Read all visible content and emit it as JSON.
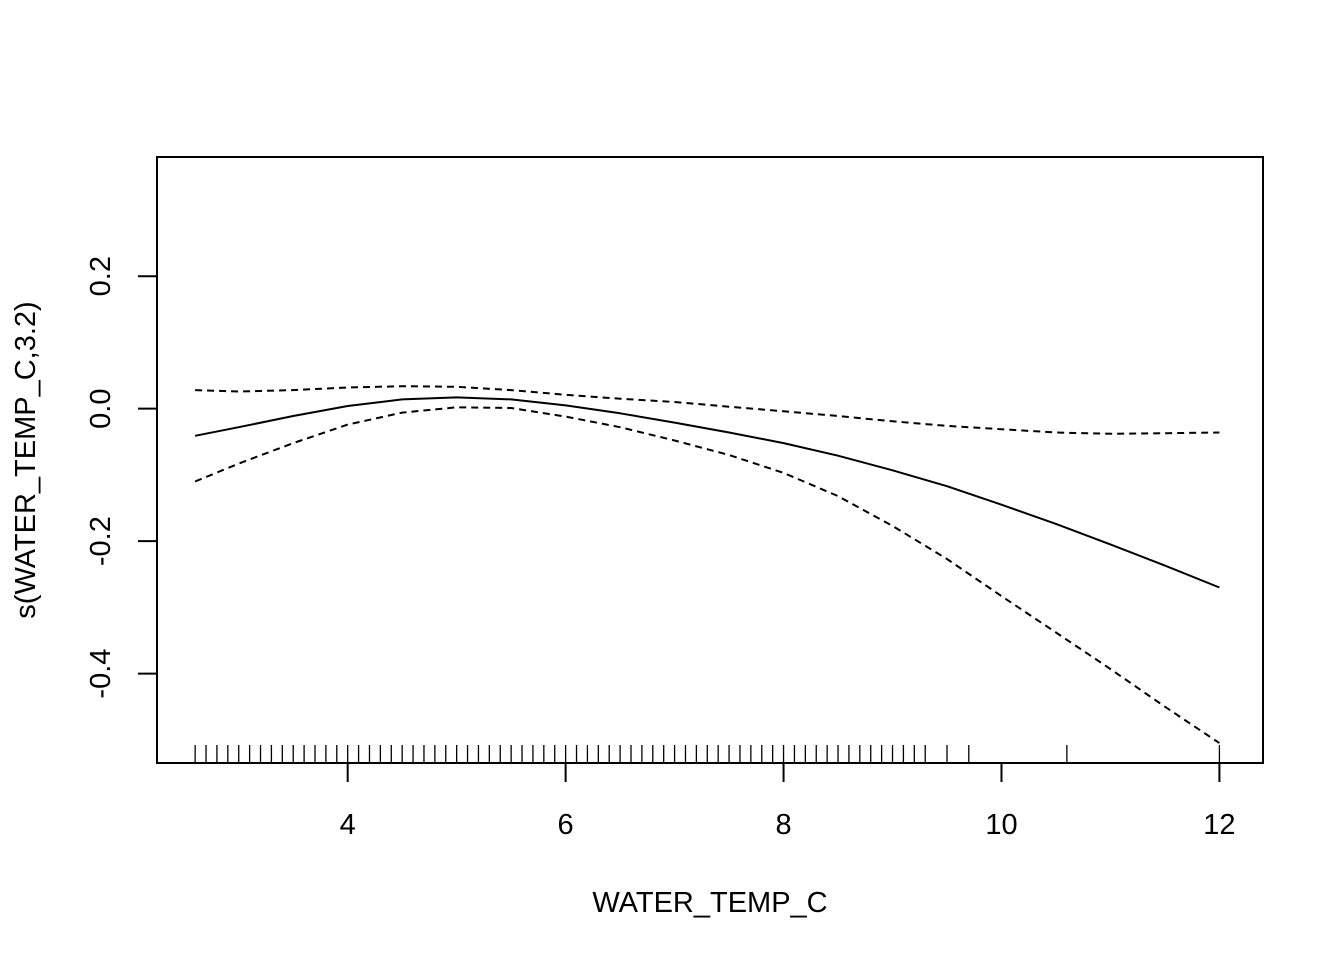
{
  "chart_data": {
    "type": "line",
    "title": "",
    "xlabel": "WATER_TEMP_C",
    "ylabel": "s(WATER_TEMP_C,3.2)",
    "xlim": [
      2.25,
      12.4
    ],
    "ylim": [
      -0.535,
      0.38
    ],
    "xticks": [
      {
        "value": 4,
        "label": "4"
      },
      {
        "value": 6,
        "label": "6"
      },
      {
        "value": 8,
        "label": "8"
      },
      {
        "value": 10,
        "label": "10"
      },
      {
        "value": 12,
        "label": "12"
      }
    ],
    "yticks": [
      {
        "value": -0.4,
        "label": "-0.4"
      },
      {
        "value": -0.2,
        "label": "-0.2"
      },
      {
        "value": 0.0,
        "label": "0.0"
      },
      {
        "value": 0.2,
        "label": "0.2"
      }
    ],
    "grid": false,
    "series": [
      {
        "style": "solid",
        "x": [
          2.6,
          3.0,
          3.5,
          4.0,
          4.5,
          5.0,
          5.5,
          6.0,
          6.5,
          7.0,
          7.5,
          8.0,
          8.5,
          9.0,
          9.5,
          10.0,
          10.5,
          11.0,
          11.5,
          12.0
        ],
        "y": [
          -0.041,
          -0.028,
          -0.011,
          0.004,
          0.014,
          0.017,
          0.014,
          0.005,
          -0.007,
          -0.021,
          -0.036,
          -0.052,
          -0.071,
          -0.093,
          -0.117,
          -0.145,
          -0.174,
          -0.205,
          -0.237,
          -0.27
        ]
      },
      {
        "style": "dashed",
        "x": [
          2.6,
          3.0,
          3.5,
          4.0,
          4.5,
          5.0,
          5.5,
          6.0,
          6.5,
          7.0,
          7.5,
          8.0,
          8.5,
          9.0,
          9.5,
          10.0,
          10.5,
          11.0,
          11.5,
          12.0
        ],
        "y": [
          0.028,
          0.026,
          0.028,
          0.032,
          0.034,
          0.033,
          0.028,
          0.021,
          0.015,
          0.01,
          0.003,
          -0.004,
          -0.011,
          -0.019,
          -0.026,
          -0.031,
          -0.036,
          -0.038,
          -0.037,
          -0.036
        ]
      },
      {
        "style": "dashed",
        "x": [
          2.6,
          3.0,
          3.5,
          4.0,
          4.5,
          5.0,
          5.5,
          6.0,
          6.5,
          7.0,
          7.5,
          8.0,
          8.5,
          9.0,
          9.5,
          10.0,
          10.5,
          11.0,
          11.5,
          12.0
        ],
        "y": [
          -0.11,
          -0.083,
          -0.052,
          -0.024,
          -0.006,
          0.002,
          0.001,
          -0.012,
          -0.028,
          -0.048,
          -0.07,
          -0.097,
          -0.132,
          -0.177,
          -0.227,
          -0.283,
          -0.338,
          -0.393,
          -0.45,
          -0.505
        ]
      }
    ],
    "rug": [
      2.6,
      2.7,
      2.8,
      2.9,
      3.0,
      3.1,
      3.2,
      3.3,
      3.4,
      3.5,
      3.6,
      3.7,
      3.8,
      3.9,
      4.0,
      4.1,
      4.2,
      4.3,
      4.4,
      4.5,
      4.6,
      4.7,
      4.8,
      4.9,
      5.0,
      5.1,
      5.2,
      5.3,
      5.4,
      5.5,
      5.6,
      5.7,
      5.8,
      5.9,
      6.0,
      6.1,
      6.2,
      6.3,
      6.4,
      6.5,
      6.6,
      6.7,
      6.8,
      6.9,
      7.0,
      7.1,
      7.2,
      7.3,
      7.4,
      7.5,
      7.6,
      7.7,
      7.8,
      7.9,
      8.0,
      8.1,
      8.2,
      8.3,
      8.4,
      8.5,
      8.6,
      8.7,
      8.8,
      8.9,
      9.0,
      9.1,
      9.2,
      9.3,
      9.5,
      9.7,
      10.6,
      12.0
    ]
  }
}
